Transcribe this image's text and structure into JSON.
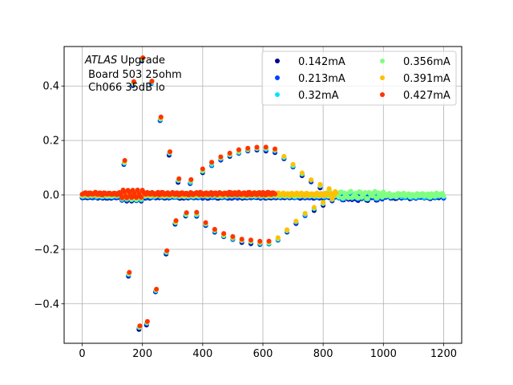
{
  "chart_data": {
    "type": "scatter",
    "title": "",
    "xlabel": "",
    "ylabel": "",
    "xlim": [
      -60,
      1260
    ],
    "ylim": [
      -0.545,
      0.545
    ],
    "xticks": [
      0,
      200,
      400,
      600,
      800,
      1000,
      1200
    ],
    "yticks": [
      -0.4,
      -0.2,
      0.0,
      0.2,
      0.4
    ],
    "xtick_labels": [
      "0",
      "200",
      "400",
      "600",
      "800",
      "1000",
      "1200"
    ],
    "ytick_labels": [
      "−0.4",
      "−0.2",
      "0.0",
      "0.2",
      "0.4"
    ],
    "grid": true,
    "legend_placement": "top-right",
    "legend_columns": 2,
    "annotation": {
      "line1_italic": "ATLAS",
      "line1_rest": " Upgrade",
      "line2": " Board 503 25ohm",
      "line3": " Ch066 35dB lo"
    },
    "series": [
      {
        "name": "0.142mA",
        "color": "#00008f",
        "x_max": 1200
      },
      {
        "name": "0.213mA",
        "color": "#0040ff",
        "x_max": 1200
      },
      {
        "name": "0.32mA",
        "color": "#00e5ff",
        "x_max": 1200
      },
      {
        "name": "0.356mA",
        "color": "#80ff80",
        "x_max": 1200
      },
      {
        "name": "0.391mA",
        "color": "#ffc000",
        "x_max": 845
      },
      {
        "name": "0.427mA",
        "color": "#ff3300",
        "x_max": 640
      }
    ],
    "pulse_points": [
      [
        140,
        0.12
      ],
      [
        155,
        -0.29
      ],
      [
        170,
        0.41
      ],
      [
        190,
        -0.485
      ],
      [
        200,
        0.5
      ],
      [
        215,
        -0.47
      ],
      [
        230,
        0.415
      ],
      [
        245,
        -0.35
      ],
      [
        260,
        0.28
      ],
      [
        280,
        -0.21
      ],
      [
        290,
        0.155
      ],
      [
        310,
        -0.1
      ],
      [
        320,
        0.055
      ],
      [
        345,
        -0.07
      ],
      [
        360,
        0.05
      ]
    ],
    "envelope_upper": [
      [
        400,
        0.09
      ],
      [
        430,
        0.115
      ],
      [
        460,
        0.135
      ],
      [
        490,
        0.15
      ],
      [
        520,
        0.16
      ],
      [
        550,
        0.168
      ],
      [
        580,
        0.172
      ],
      [
        610,
        0.17
      ],
      [
        640,
        0.165
      ],
      [
        670,
        0.14
      ],
      [
        700,
        0.11
      ],
      [
        730,
        0.08
      ],
      [
        760,
        0.055
      ],
      [
        790,
        0.035
      ],
      [
        820,
        0.02
      ]
    ],
    "envelope_lower": [
      [
        380,
        -0.07
      ],
      [
        410,
        -0.105
      ],
      [
        440,
        -0.13
      ],
      [
        470,
        -0.148
      ],
      [
        500,
        -0.158
      ],
      [
        530,
        -0.166
      ],
      [
        560,
        -0.17
      ],
      [
        590,
        -0.176
      ],
      [
        620,
        -0.175
      ],
      [
        650,
        -0.16
      ],
      [
        680,
        -0.13
      ],
      [
        710,
        -0.098
      ],
      [
        740,
        -0.07
      ],
      [
        770,
        -0.048
      ],
      [
        800,
        -0.03
      ],
      [
        830,
        -0.015
      ]
    ]
  }
}
